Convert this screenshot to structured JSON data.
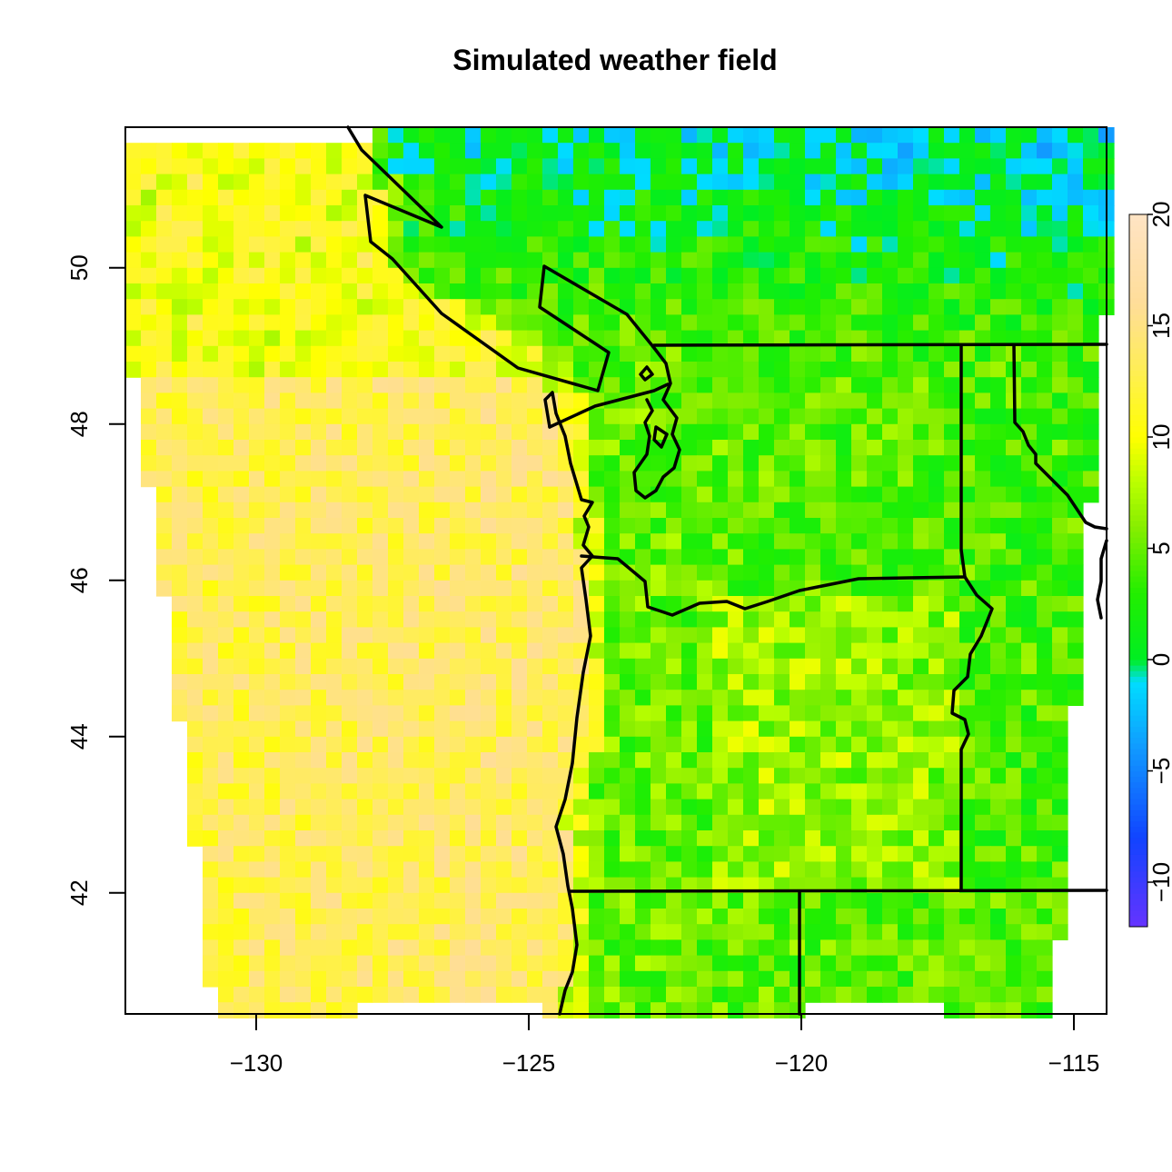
{
  "chart_data": {
    "type": "heatmap",
    "title": "Simulated weather field",
    "x_axis": {
      "ticks": [
        -130,
        -125,
        -120,
        -115
      ],
      "tick_labels": [
        "−130",
        "−125",
        "−120",
        "−115"
      ],
      "range": [
        -132.4,
        -114.4
      ]
    },
    "y_axis": {
      "ticks": [
        42,
        44,
        46,
        48,
        50
      ],
      "tick_labels": [
        "42",
        "44",
        "46",
        "48",
        "50"
      ],
      "range": [
        40.45,
        51.8
      ]
    },
    "colorbar": {
      "range": [
        -12,
        20
      ],
      "ticks": [
        -10,
        -5,
        0,
        5,
        10,
        15,
        20
      ],
      "tick_labels": [
        "−10",
        "−5",
        "0",
        "5",
        "10",
        "15",
        "20"
      ],
      "colors": [
        "#6633ff",
        "#1144ff",
        "#1199ff",
        "#00ddff",
        "#00ee22",
        "#44ee00",
        "#bbff00",
        "#ffff00",
        "#ffee55",
        "#ffdd99",
        "#ffe4c4"
      ]
    },
    "field_summary": {
      "ocean_west_value_approx": 13,
      "inland_value_approx": 5,
      "northeast_cold_value_approx": -3,
      "grid_resolution_deg": 0.25
    }
  }
}
